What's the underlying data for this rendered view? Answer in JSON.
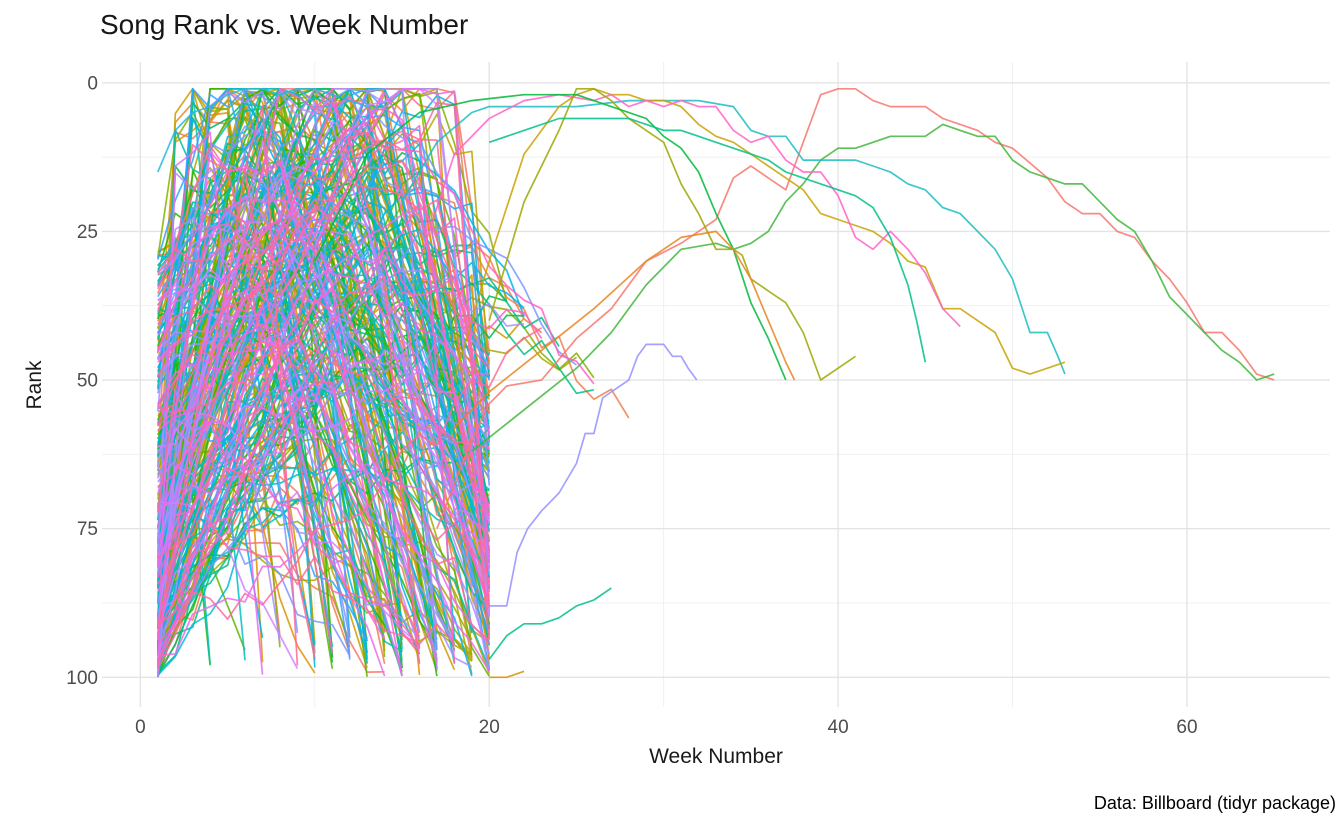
{
  "chart_data": {
    "type": "line",
    "title": "Song Rank vs. Week Number",
    "xlabel": "Week Number",
    "ylabel": "Rank",
    "caption": "Data: Billboard (tidyr package)",
    "legend": "none",
    "grid": "major+minor",
    "x_ticks": [
      0,
      20,
      40,
      60
    ],
    "x_minor_ticks": [
      10,
      30,
      50
    ],
    "y_ticks": [
      0,
      25,
      50,
      75,
      100
    ],
    "y_minor_ticks": [
      12.5,
      37.5,
      62.5,
      87.5
    ],
    "x_range": [
      -2.2,
      68.2
    ],
    "y_range": [
      -3.5,
      105
    ],
    "y_reversed": true,
    "style": {
      "background": "#FFFFFF",
      "grid_major_color": "#E4E4E4",
      "grid_minor_color": "#EFEFEF",
      "tick_label_color": "#4D4D4D",
      "axis_title_color": "#1A1A1A",
      "title_color": "#171717",
      "line_width": 1.7,
      "line_opacity": 0.85
    },
    "palette": [
      "#F8766D",
      "#F07E4D",
      "#E98A2C",
      "#DE9200",
      "#CE9B00",
      "#BAA300",
      "#A3AA00",
      "#86B000",
      "#5EB500",
      "#24B700",
      "#00BA53",
      "#00BD84",
      "#00BFA9",
      "#00BFC4",
      "#00BBDA",
      "#00B3F0",
      "#33A2FF",
      "#7997FF",
      "#A98EFF",
      "#CE81FF",
      "#E96BF0",
      "#F863DF",
      "#FF61C3",
      "#FF689E"
    ],
    "featured_series": [
      {
        "name": "cyan-early-hit",
        "color": "#26B8E0",
        "points": [
          [
            1,
            15
          ],
          [
            2,
            8
          ],
          [
            3,
            5
          ],
          [
            4,
            4
          ],
          [
            5,
            2
          ],
          [
            6,
            1
          ],
          [
            7,
            1
          ],
          [
            8,
            2
          ],
          [
            9,
            1
          ],
          [
            10,
            1
          ],
          [
            11,
            2
          ],
          [
            12,
            3
          ],
          [
            13,
            4
          ]
        ]
      },
      {
        "name": "salmon-longest-run",
        "color": "#F8766D",
        "points": [
          [
            17,
            75
          ],
          [
            19,
            60
          ],
          [
            20,
            54
          ],
          [
            21,
            51
          ],
          [
            23,
            50
          ],
          [
            25,
            43
          ],
          [
            27,
            38
          ],
          [
            29,
            30
          ],
          [
            31,
            27
          ],
          [
            33,
            23
          ],
          [
            34,
            16
          ],
          [
            35,
            14
          ],
          [
            36,
            16
          ],
          [
            37,
            18
          ],
          [
            38,
            10
          ],
          [
            39,
            2
          ],
          [
            40,
            1
          ],
          [
            41,
            1
          ],
          [
            42,
            3
          ],
          [
            43,
            4
          ],
          [
            45,
            4
          ],
          [
            46,
            6
          ],
          [
            48,
            8
          ],
          [
            49,
            10
          ],
          [
            50,
            11
          ],
          [
            52,
            16
          ],
          [
            53,
            20
          ],
          [
            54,
            22
          ],
          [
            55,
            22
          ],
          [
            56,
            25
          ],
          [
            57,
            26
          ],
          [
            58,
            30
          ],
          [
            59,
            33
          ],
          [
            60,
            37
          ],
          [
            61,
            42
          ],
          [
            62,
            42
          ],
          [
            63,
            45
          ],
          [
            64,
            49
          ],
          [
            65,
            50
          ]
        ]
      },
      {
        "name": "green-longest-run",
        "color": "#43B63C",
        "points": [
          [
            19,
            62
          ],
          [
            22,
            55
          ],
          [
            25,
            48
          ],
          [
            27,
            42
          ],
          [
            29,
            34
          ],
          [
            31,
            28
          ],
          [
            33,
            27
          ],
          [
            34,
            28
          ],
          [
            35,
            27
          ],
          [
            36,
            25
          ],
          [
            37,
            20
          ],
          [
            38,
            17
          ],
          [
            39,
            13
          ],
          [
            40,
            11
          ],
          [
            41,
            11
          ],
          [
            42,
            10
          ],
          [
            43,
            9
          ],
          [
            44,
            9
          ],
          [
            45,
            9
          ],
          [
            46,
            7
          ],
          [
            47,
            8
          ],
          [
            48,
            9
          ],
          [
            49,
            9
          ],
          [
            50,
            13
          ],
          [
            51,
            15
          ],
          [
            52,
            16
          ],
          [
            53,
            17
          ],
          [
            54,
            17
          ],
          [
            55,
            20
          ],
          [
            56,
            23
          ],
          [
            57,
            25
          ],
          [
            58,
            30
          ],
          [
            59,
            36
          ],
          [
            60,
            39
          ],
          [
            61,
            42
          ],
          [
            62,
            45
          ],
          [
            63,
            47
          ],
          [
            64,
            50
          ],
          [
            65,
            49
          ]
        ]
      },
      {
        "name": "teal-long-run",
        "color": "#1CBDC2",
        "points": [
          [
            15,
            20
          ],
          [
            17,
            10
          ],
          [
            19,
            5
          ],
          [
            20,
            4
          ],
          [
            22,
            4
          ],
          [
            25,
            4
          ],
          [
            28,
            3
          ],
          [
            30,
            3
          ],
          [
            32,
            3
          ],
          [
            34,
            4
          ],
          [
            35,
            8
          ],
          [
            36,
            9
          ],
          [
            37,
            9
          ],
          [
            38,
            13
          ],
          [
            39,
            13
          ],
          [
            40,
            13
          ],
          [
            41,
            13
          ],
          [
            42,
            14
          ],
          [
            43,
            15
          ],
          [
            44,
            17
          ],
          [
            45,
            18
          ],
          [
            46,
            21
          ],
          [
            47,
            22
          ],
          [
            48,
            25
          ],
          [
            49,
            28
          ],
          [
            50,
            33
          ],
          [
            51,
            42
          ],
          [
            52,
            42
          ],
          [
            52.6,
            46
          ],
          [
            53,
            49
          ]
        ]
      },
      {
        "name": "gold-long-run",
        "color": "#C9A200",
        "points": [
          [
            18,
            50
          ],
          [
            20,
            30
          ],
          [
            22,
            12
          ],
          [
            24,
            4
          ],
          [
            25,
            2
          ],
          [
            26,
            1
          ],
          [
            27,
            2
          ],
          [
            28,
            2
          ],
          [
            29,
            3
          ],
          [
            30,
            3
          ],
          [
            31,
            4
          ],
          [
            32,
            7
          ],
          [
            33,
            9
          ],
          [
            34,
            10
          ],
          [
            35,
            12
          ],
          [
            36,
            14
          ],
          [
            37,
            16
          ],
          [
            38,
            18
          ],
          [
            39,
            22
          ],
          [
            40,
            23
          ],
          [
            41,
            24
          ],
          [
            42,
            25
          ],
          [
            43,
            27
          ],
          [
            44,
            30
          ],
          [
            45,
            31
          ],
          [
            46,
            38
          ],
          [
            47,
            38
          ],
          [
            48,
            40
          ],
          [
            49,
            42
          ],
          [
            50,
            48
          ],
          [
            51,
            49
          ],
          [
            52,
            48
          ],
          [
            53,
            47
          ]
        ]
      },
      {
        "name": "pink-long-run",
        "color": "#FF61C7",
        "points": [
          [
            16,
            30
          ],
          [
            18,
            12
          ],
          [
            20,
            6
          ],
          [
            22,
            3
          ],
          [
            24,
            2
          ],
          [
            26,
            3
          ],
          [
            27,
            2
          ],
          [
            28,
            4
          ],
          [
            29,
            3
          ],
          [
            30,
            4
          ],
          [
            31,
            3
          ],
          [
            32,
            4
          ],
          [
            33,
            4
          ],
          [
            34,
            8
          ],
          [
            35,
            10
          ],
          [
            36,
            9
          ],
          [
            37,
            13
          ],
          [
            38,
            15
          ],
          [
            39,
            15
          ],
          [
            40,
            19
          ],
          [
            41,
            26
          ],
          [
            42,
            28
          ],
          [
            43,
            25
          ],
          [
            44,
            28
          ],
          [
            45,
            32
          ],
          [
            46,
            38
          ],
          [
            47,
            41
          ]
        ]
      },
      {
        "name": "olive-run",
        "color": "#9CA700",
        "points": [
          [
            20,
            40
          ],
          [
            22,
            20
          ],
          [
            24,
            8
          ],
          [
            25,
            1
          ],
          [
            26,
            1
          ],
          [
            27,
            3
          ],
          [
            28,
            6
          ],
          [
            29,
            8
          ],
          [
            30,
            10
          ],
          [
            31,
            17
          ],
          [
            32,
            22
          ],
          [
            33,
            28
          ],
          [
            34,
            28
          ],
          [
            34.5,
            29
          ],
          [
            35,
            33
          ],
          [
            36,
            35
          ],
          [
            37,
            37
          ],
          [
            38,
            42
          ],
          [
            39,
            50
          ],
          [
            40,
            48
          ],
          [
            41,
            46
          ]
        ]
      },
      {
        "name": "green-mid-run",
        "color": "#00BA38",
        "points": [
          [
            10,
            30
          ],
          [
            13,
            12
          ],
          [
            16,
            5
          ],
          [
            19,
            3
          ],
          [
            22,
            2
          ],
          [
            25,
            2
          ],
          [
            27,
            4
          ],
          [
            29,
            6
          ],
          [
            30,
            9
          ],
          [
            31,
            11
          ],
          [
            32,
            15
          ],
          [
            33,
            22
          ],
          [
            34,
            28
          ],
          [
            35,
            37
          ],
          [
            36,
            43
          ],
          [
            37,
            50
          ]
        ]
      },
      {
        "name": "seagreen-mid-run",
        "color": "#00C08B",
        "points": [
          [
            20,
            10
          ],
          [
            22,
            8
          ],
          [
            24,
            6
          ],
          [
            26,
            6
          ],
          [
            28,
            6
          ],
          [
            29,
            7
          ],
          [
            30,
            8
          ],
          [
            31,
            8
          ],
          [
            32,
            9
          ],
          [
            33,
            10
          ],
          [
            34,
            11
          ],
          [
            35,
            12
          ],
          [
            36,
            13
          ],
          [
            37,
            15
          ],
          [
            38,
            16
          ],
          [
            39,
            17
          ],
          [
            40,
            18
          ],
          [
            41,
            19
          ],
          [
            42,
            21
          ],
          [
            43,
            26
          ],
          [
            44,
            34
          ],
          [
            44.5,
            40
          ],
          [
            45,
            47
          ]
        ]
      },
      {
        "name": "periwinkle-late-riser",
        "color": "#9590FF",
        "points": [
          [
            20,
            88
          ],
          [
            21,
            88
          ],
          [
            21.6,
            79
          ],
          [
            22.2,
            75
          ],
          [
            23,
            72
          ],
          [
            24,
            69
          ],
          [
            25,
            64
          ],
          [
            25.5,
            59
          ],
          [
            26,
            59
          ],
          [
            26.5,
            53
          ],
          [
            27,
            52
          ],
          [
            28,
            50
          ],
          [
            28.5,
            46
          ],
          [
            29,
            44
          ],
          [
            30,
            44
          ],
          [
            30.5,
            46
          ],
          [
            31,
            46
          ],
          [
            31.4,
            48
          ],
          [
            31.9,
            50
          ]
        ]
      },
      {
        "name": "seagreen-low-tail",
        "color": "#00C08B",
        "points": [
          [
            20,
            97
          ],
          [
            21,
            93
          ],
          [
            22,
            91
          ],
          [
            23,
            91
          ],
          [
            24,
            90
          ],
          [
            25,
            88
          ],
          [
            26,
            87
          ],
          [
            27,
            85
          ]
        ]
      },
      {
        "name": "gold-bottom-tail",
        "color": "#D89000",
        "points": [
          [
            20,
            100
          ],
          [
            21,
            100
          ],
          [
            22,
            99
          ]
        ]
      },
      {
        "name": "orange-mid-run",
        "color": "#E8851E",
        "points": [
          [
            18,
            58
          ],
          [
            20,
            52
          ],
          [
            23,
            45
          ],
          [
            26,
            38
          ],
          [
            29,
            30
          ],
          [
            31,
            26
          ],
          [
            33,
            25
          ],
          [
            34,
            28
          ],
          [
            35,
            33
          ],
          [
            36,
            40
          ],
          [
            37,
            47
          ],
          [
            37.5,
            50
          ]
        ]
      }
    ],
    "background_series": {
      "count": 300,
      "seed": 42,
      "entry_week": 1,
      "entry_rank_range": [
        28,
        100
      ],
      "peak_rank_range": [
        1,
        93
      ],
      "peak_week_range": [
        2,
        16
      ],
      "max_week": 20,
      "exit_rank_at_cutoff_range": [
        45,
        100
      ],
      "exit_rank_dropout_range": [
        92,
        100
      ],
      "long_tail_fraction": 0.05,
      "long_tail_week_range": [
        21,
        29
      ],
      "long_tail_exit_rank_range": [
        35,
        60
      ]
    }
  }
}
